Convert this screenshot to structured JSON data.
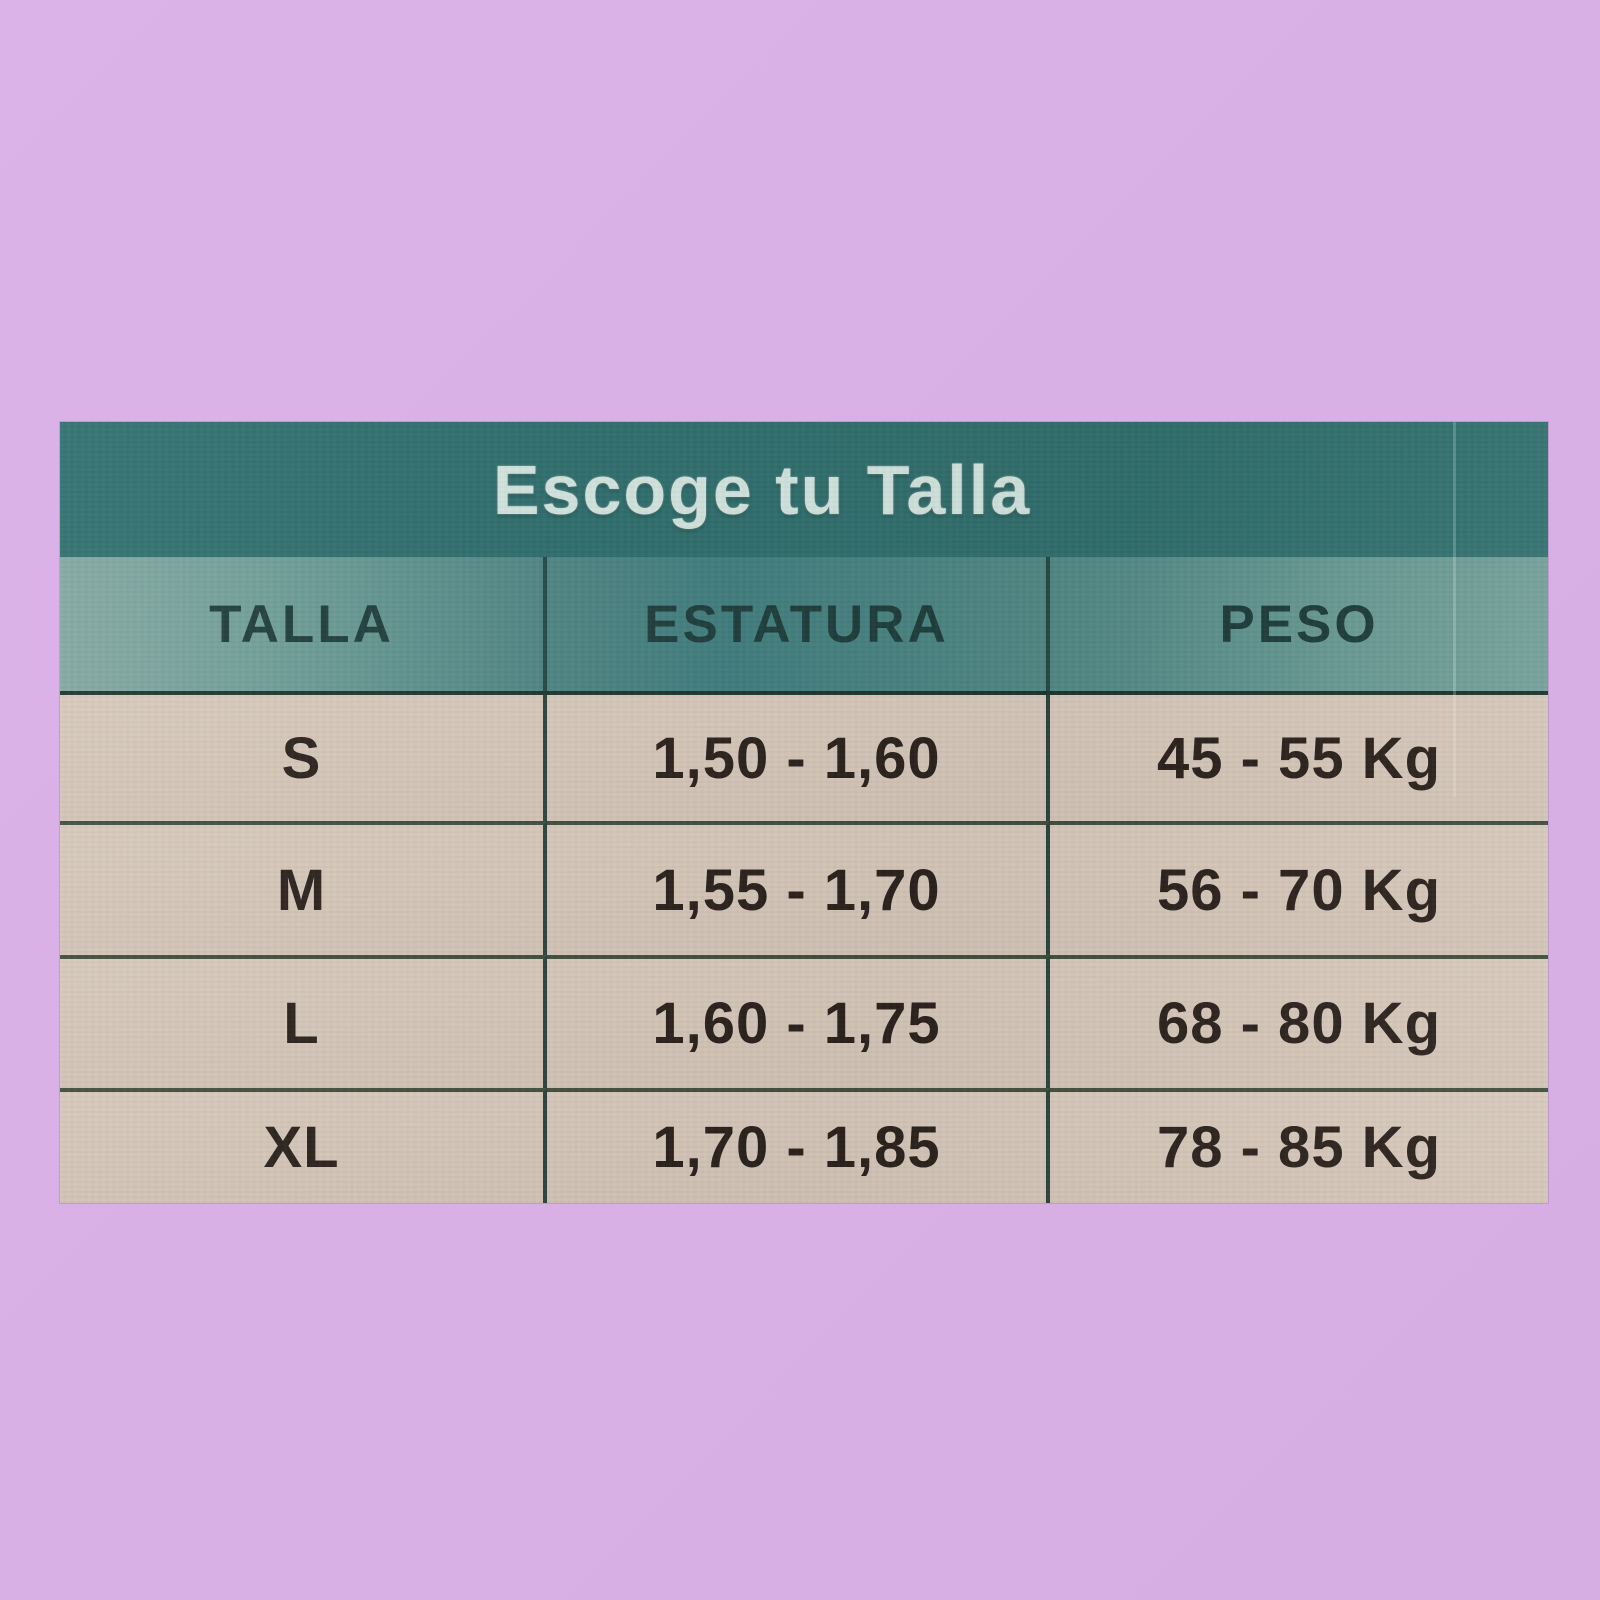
{
  "page": {
    "background_color": "#d9b1e7"
  },
  "chart_data": {
    "type": "table",
    "title": "Escoge tu Talla",
    "columns": [
      "TALLA",
      "ESTATURA",
      "PESO"
    ],
    "rows": [
      [
        "S",
        "1,50 - 1,60",
        "45 - 55 Kg"
      ],
      [
        "M",
        "1,55 - 1,70",
        "56 - 70 Kg"
      ],
      [
        "L",
        "1,60 - 1,75",
        "68 - 80 Kg"
      ],
      [
        "XL",
        "1,70 - 1,85",
        "78 - 85 Kg"
      ]
    ],
    "layout": {
      "legend": "none",
      "grid": "ruled table with dark row and column dividers"
    },
    "colors": {
      "page_background": "#d9b1e7",
      "title_band": "#2e6e6d",
      "header_band": "#5a908c",
      "row_background": "#d5c7b9",
      "title_text": "#d2e5df",
      "header_text": "#1d3d3a",
      "cell_text": "#2b211c",
      "divider": "#2a423c"
    }
  }
}
